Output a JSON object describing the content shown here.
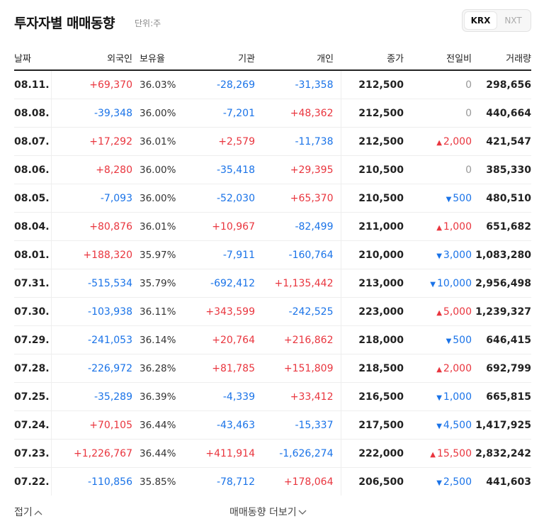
{
  "header": {
    "title": "투자자별 매매동향",
    "unit": "단위:주",
    "market_tabs": [
      {
        "label": "KRX",
        "active": true
      },
      {
        "label": "NXT",
        "active": false
      }
    ]
  },
  "columns": [
    "날짜",
    "외국인",
    "보유율",
    "기관",
    "개인",
    "종가",
    "전일비",
    "거래량"
  ],
  "rows": [
    {
      "date": "08.11.",
      "foreign": "+69,370",
      "hold": "36.03%",
      "inst": "-28,269",
      "indiv": "-31,358",
      "close": "212,500",
      "change": "0",
      "dir": "flat",
      "volume": "298,656"
    },
    {
      "date": "08.08.",
      "foreign": "-39,348",
      "hold": "36.00%",
      "inst": "-7,201",
      "indiv": "+48,362",
      "close": "212,500",
      "change": "0",
      "dir": "flat",
      "volume": "440,664"
    },
    {
      "date": "08.07.",
      "foreign": "+17,292",
      "hold": "36.01%",
      "inst": "+2,579",
      "indiv": "-11,738",
      "close": "212,500",
      "change": "2,000",
      "dir": "up",
      "volume": "421,547"
    },
    {
      "date": "08.06.",
      "foreign": "+8,280",
      "hold": "36.00%",
      "inst": "-35,418",
      "indiv": "+29,395",
      "close": "210,500",
      "change": "0",
      "dir": "flat",
      "volume": "385,330"
    },
    {
      "date": "08.05.",
      "foreign": "-7,093",
      "hold": "36.00%",
      "inst": "-52,030",
      "indiv": "+65,370",
      "close": "210,500",
      "change": "500",
      "dir": "down",
      "volume": "480,510"
    },
    {
      "date": "08.04.",
      "foreign": "+80,876",
      "hold": "36.01%",
      "inst": "+10,967",
      "indiv": "-82,499",
      "close": "211,000",
      "change": "1,000",
      "dir": "up",
      "volume": "651,682"
    },
    {
      "date": "08.01.",
      "foreign": "+188,320",
      "hold": "35.97%",
      "inst": "-7,911",
      "indiv": "-160,764",
      "close": "210,000",
      "change": "3,000",
      "dir": "down",
      "volume": "1,083,280"
    },
    {
      "date": "07.31.",
      "foreign": "-515,534",
      "hold": "35.79%",
      "inst": "-692,412",
      "indiv": "+1,135,442",
      "close": "213,000",
      "change": "10,000",
      "dir": "down",
      "volume": "2,956,498"
    },
    {
      "date": "07.30.",
      "foreign": "-103,938",
      "hold": "36.11%",
      "inst": "+343,599",
      "indiv": "-242,525",
      "close": "223,000",
      "change": "5,000",
      "dir": "up",
      "volume": "1,239,327"
    },
    {
      "date": "07.29.",
      "foreign": "-241,053",
      "hold": "36.14%",
      "inst": "+20,764",
      "indiv": "+216,862",
      "close": "218,000",
      "change": "500",
      "dir": "down",
      "volume": "646,415"
    },
    {
      "date": "07.28.",
      "foreign": "-226,972",
      "hold": "36.28%",
      "inst": "+81,785",
      "indiv": "+151,809",
      "close": "218,500",
      "change": "2,000",
      "dir": "up",
      "volume": "692,799"
    },
    {
      "date": "07.25.",
      "foreign": "-35,289",
      "hold": "36.39%",
      "inst": "-4,339",
      "indiv": "+33,412",
      "close": "216,500",
      "change": "1,000",
      "dir": "down",
      "volume": "665,815"
    },
    {
      "date": "07.24.",
      "foreign": "+70,105",
      "hold": "36.44%",
      "inst": "-43,463",
      "indiv": "-15,337",
      "close": "217,500",
      "change": "4,500",
      "dir": "down",
      "volume": "1,417,925"
    },
    {
      "date": "07.23.",
      "foreign": "+1,226,767",
      "hold": "36.44%",
      "inst": "+411,914",
      "indiv": "-1,626,274",
      "close": "222,000",
      "change": "15,500",
      "dir": "up",
      "volume": "2,832,242"
    },
    {
      "date": "07.22.",
      "foreign": "-110,856",
      "hold": "35.85%",
      "inst": "-78,712",
      "indiv": "+178,064",
      "close": "206,500",
      "change": "2,500",
      "dir": "down",
      "volume": "441,603"
    }
  ],
  "footer": {
    "fold_label": "접기",
    "more_label": "매매동향 더보기"
  },
  "colors": {
    "up": "#e9353e",
    "down": "#1a73e8",
    "flat": "#999999"
  }
}
